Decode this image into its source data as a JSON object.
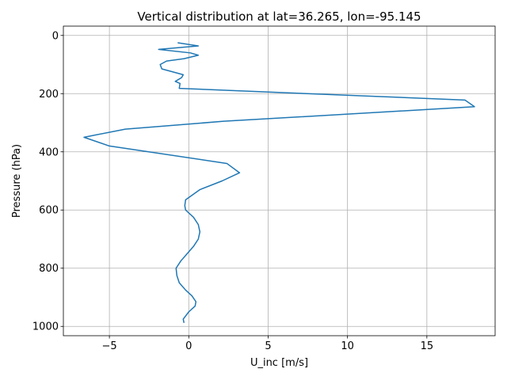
{
  "chart_data": {
    "type": "line",
    "title": "Vertical distribution at lat=36.265, lon=-95.145",
    "xlabel": "U_inc [m/s]",
    "ylabel": "Pressure (hPa)",
    "xlim": [
      -7.9,
      19.3
    ],
    "ylim": [
      1032,
      -32
    ],
    "y_inverted": true,
    "grid": true,
    "line_color": "#1f77b4",
    "xticks": [
      -5,
      0,
      5,
      10,
      15
    ],
    "yticks": [
      0,
      200,
      400,
      600,
      800,
      1000
    ],
    "xtick_labels": [
      "−5",
      "0",
      "5",
      "10",
      "15"
    ],
    "ytick_labels": [
      "0",
      "200",
      "400",
      "600",
      "800",
      "1000"
    ],
    "series": [
      {
        "points": [
          [
            -0.3,
            988
          ],
          [
            -0.35,
            975
          ],
          [
            0.0,
            950
          ],
          [
            0.4,
            930
          ],
          [
            0.45,
            915
          ],
          [
            0.2,
            895
          ],
          [
            -0.2,
            875
          ],
          [
            -0.6,
            850
          ],
          [
            -0.75,
            825
          ],
          [
            -0.8,
            800
          ],
          [
            -0.5,
            775
          ],
          [
            -0.1,
            750
          ],
          [
            0.3,
            725
          ],
          [
            0.6,
            700
          ],
          [
            0.7,
            675
          ],
          [
            0.6,
            650
          ],
          [
            0.3,
            625
          ],
          [
            -0.2,
            600
          ],
          [
            -0.25,
            585
          ],
          [
            -0.2,
            565
          ],
          [
            0.7,
            530
          ],
          [
            2.1,
            500
          ],
          [
            3.2,
            472
          ],
          [
            2.4,
            440
          ],
          [
            -5.0,
            380
          ],
          [
            -6.6,
            350
          ],
          [
            -4.0,
            322
          ],
          [
            2.2,
            295
          ],
          [
            18.0,
            245
          ],
          [
            17.4,
            222
          ],
          [
            -0.6,
            182
          ],
          [
            -0.55,
            165
          ],
          [
            -0.85,
            158
          ],
          [
            -0.45,
            145
          ],
          [
            -0.35,
            135
          ],
          [
            -1.7,
            115
          ],
          [
            -1.8,
            100
          ],
          [
            -1.4,
            88
          ],
          [
            -0.3,
            80
          ],
          [
            0.6,
            68
          ],
          [
            0.1,
            60
          ],
          [
            -1.9,
            48
          ],
          [
            0.6,
            36
          ],
          [
            -0.7,
            25
          ]
        ]
      }
    ]
  }
}
